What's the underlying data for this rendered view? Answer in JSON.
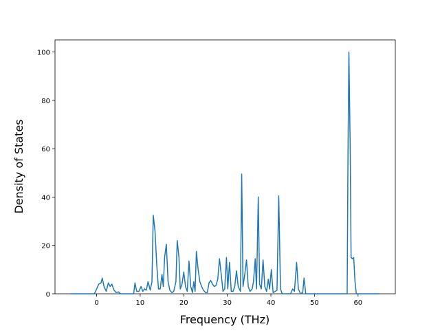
{
  "chart_data": {
    "type": "line",
    "xlabel": "Frequency (THz)",
    "ylabel": "Density of States",
    "xlim": [
      -9.55,
      68.55
    ],
    "ylim": [
      0,
      105
    ],
    "xticks": [
      0,
      10,
      20,
      30,
      40,
      50,
      60
    ],
    "yticks": [
      0,
      20,
      40,
      60,
      80,
      100
    ],
    "series": [
      {
        "color": "#1f77b4",
        "x": [
          -6,
          -0.5,
          0,
          0.5,
          1,
          1.3,
          1.7,
          2.2,
          2.7,
          3.1,
          3.5,
          4,
          4.5,
          5,
          5.5,
          8.5,
          8.8,
          9.2,
          9.7,
          10.2,
          10.6,
          11,
          11.4,
          11.8,
          12.3,
          12.7,
          13,
          13.4,
          13.8,
          14.2,
          14.6,
          15,
          15.3,
          15.6,
          16,
          16.4,
          16.8,
          17.3,
          17.7,
          18.2,
          18.5,
          18.9,
          19.2,
          19.6,
          20,
          20.4,
          20.8,
          21.2,
          21.6,
          22,
          22.3,
          22.6,
          22.9,
          23.3,
          23.7,
          24.1,
          24.5,
          25,
          25.4,
          25.8,
          26.2,
          26.6,
          27,
          27.4,
          27.8,
          28.2,
          28.6,
          29,
          29.4,
          29.8,
          30.1,
          30.5,
          30.9,
          31.3,
          31.7,
          32.1,
          32.5,
          33,
          33.3,
          33.6,
          34,
          34.4,
          34.8,
          35.2,
          35.7,
          36,
          36.4,
          36.7,
          37.1,
          37.4,
          37.8,
          38.2,
          38.6,
          39,
          39.4,
          39.7,
          40.1,
          40.5,
          41,
          41.4,
          41.8,
          42.2,
          42.6,
          44.5,
          45,
          45.4,
          45.9,
          46.3,
          46.8,
          47.3,
          47.6,
          48,
          57.5,
          57.7,
          57.9,
          58.2,
          58.4,
          58.7,
          59,
          59.3,
          59.6,
          65
        ],
        "values": [
          0,
          0,
          2,
          4,
          4.5,
          6.5,
          3,
          1,
          4.5,
          3,
          4,
          1.5,
          0.5,
          0.8,
          0,
          0,
          4.5,
          1,
          1,
          3,
          1,
          2,
          1.5,
          5,
          1.5,
          5,
          32.5,
          26,
          12,
          2,
          2,
          8,
          3,
          15,
          20.5,
          5,
          1.5,
          0.5,
          1,
          5,
          22,
          15,
          2,
          4,
          9,
          3,
          1,
          13.5,
          3,
          0.5,
          5,
          1,
          17.5,
          10,
          5,
          3,
          1.5,
          0.5,
          0.5,
          4.5,
          5.5,
          4,
          3,
          3.5,
          6,
          14.5,
          8,
          1,
          2,
          15,
          2,
          13,
          1,
          1,
          3,
          9.5,
          3,
          1,
          49.5,
          3,
          8,
          14,
          3,
          1,
          2,
          5,
          14.5,
          2,
          40,
          4,
          2,
          14,
          3,
          1,
          6,
          2,
          10,
          0.5,
          1,
          1.5,
          40.5,
          2,
          0,
          0,
          2,
          1,
          13,
          2,
          0,
          0.5,
          6.5,
          0,
          0,
          60,
          100,
          60,
          15,
          14.5,
          15,
          5,
          0,
          0
        ]
      }
    ]
  }
}
